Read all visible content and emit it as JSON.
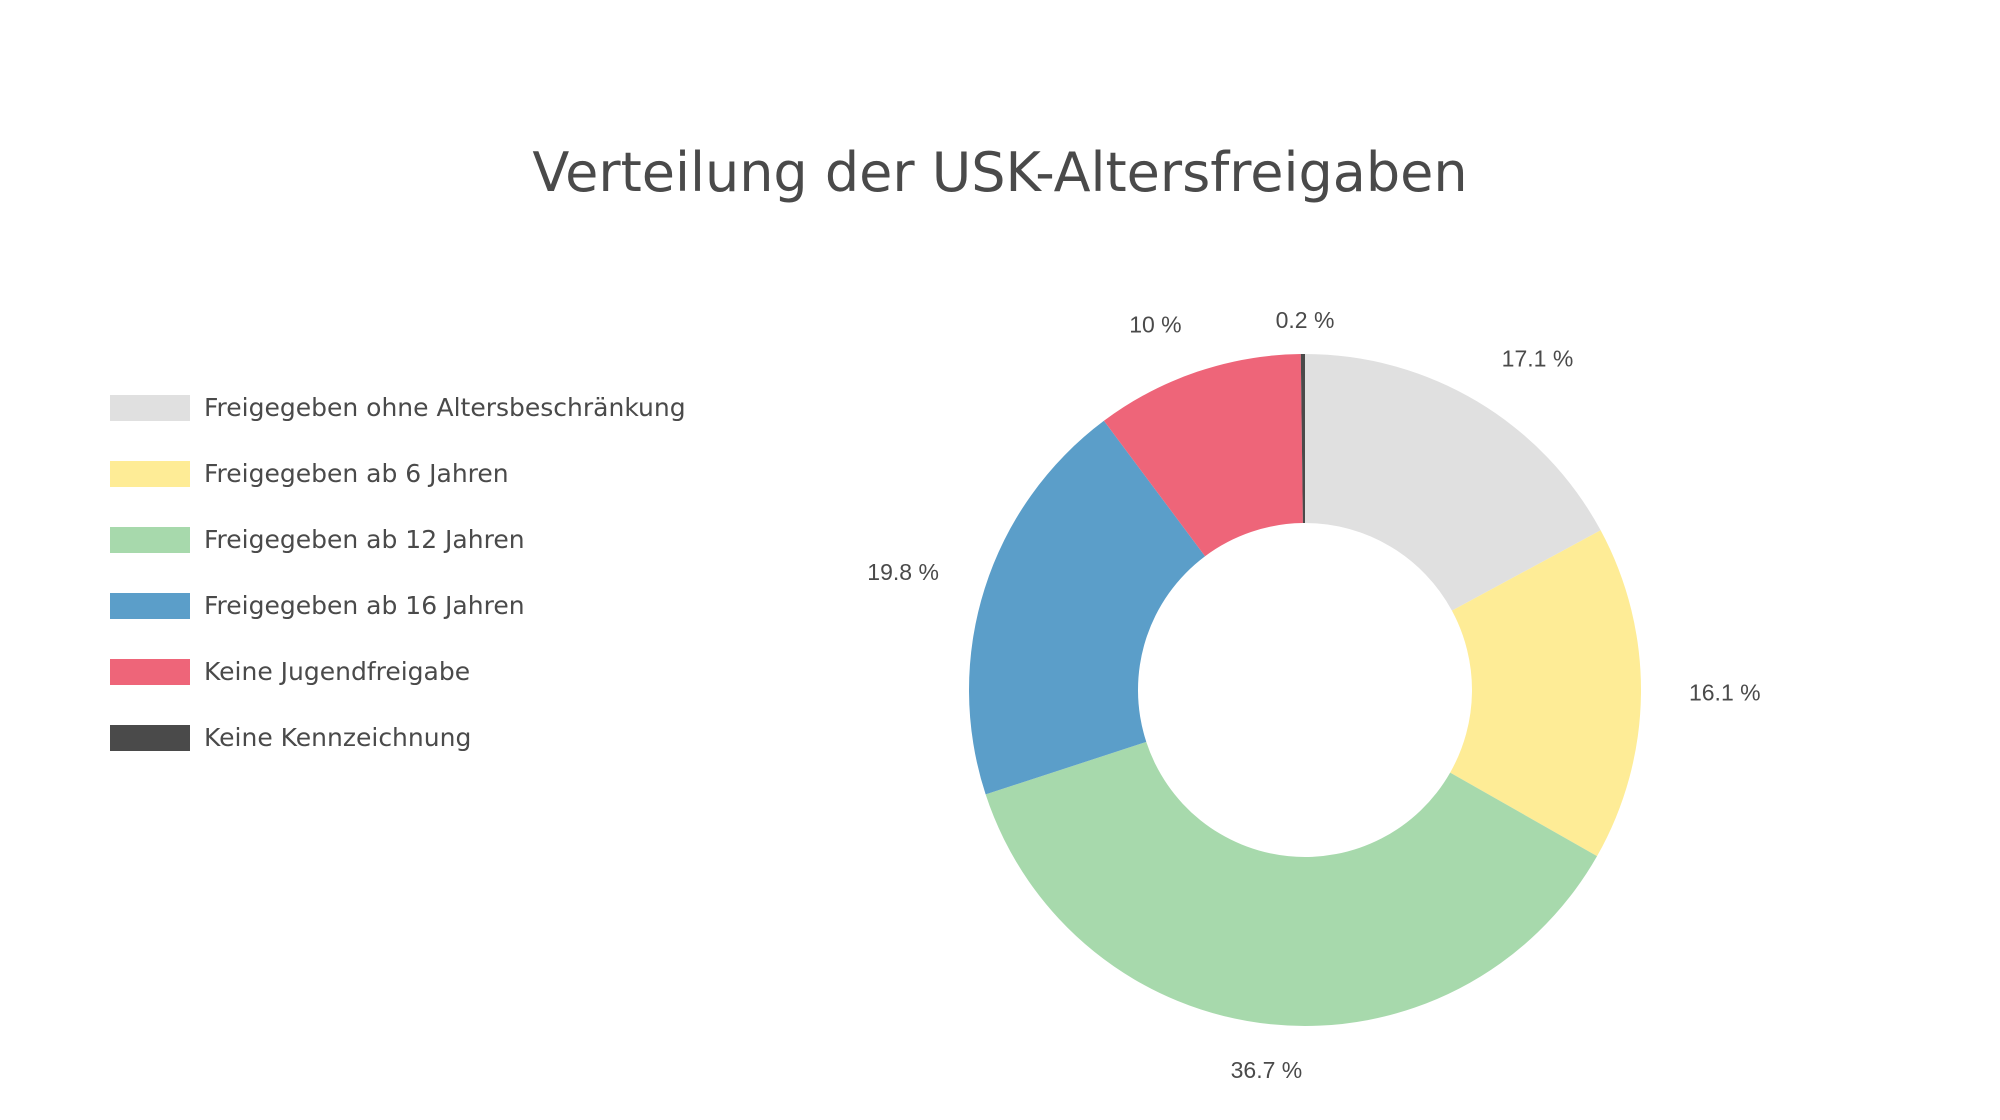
{
  "chart_data": {
    "type": "pie",
    "style": "donut",
    "title": "Verteilung der USK-Altersfreigaben",
    "legend_position": "left",
    "categories": [
      "Freigegeben ohne Altersbeschränkung",
      "Freigegeben ab 6 Jahren",
      "Freigegeben ab 12 Jahren",
      "Freigegeben ab 16 Jahren",
      "Keine Jugendfreigabe",
      "Keine Kennzeichnung"
    ],
    "values": [
      17.1,
      16.1,
      36.7,
      19.8,
      10,
      0.2
    ],
    "data_labels": [
      "17.1 %",
      "16.1 %",
      "36.7 %",
      "19.8 %",
      "10 %",
      "0.2 %"
    ],
    "colors": [
      "#e0e0e0",
      "#feec96",
      "#a7d9ac",
      "#5b9ec9",
      "#ee6579",
      "#4a4a4a"
    ],
    "start": "top",
    "direction": "clockwise"
  }
}
